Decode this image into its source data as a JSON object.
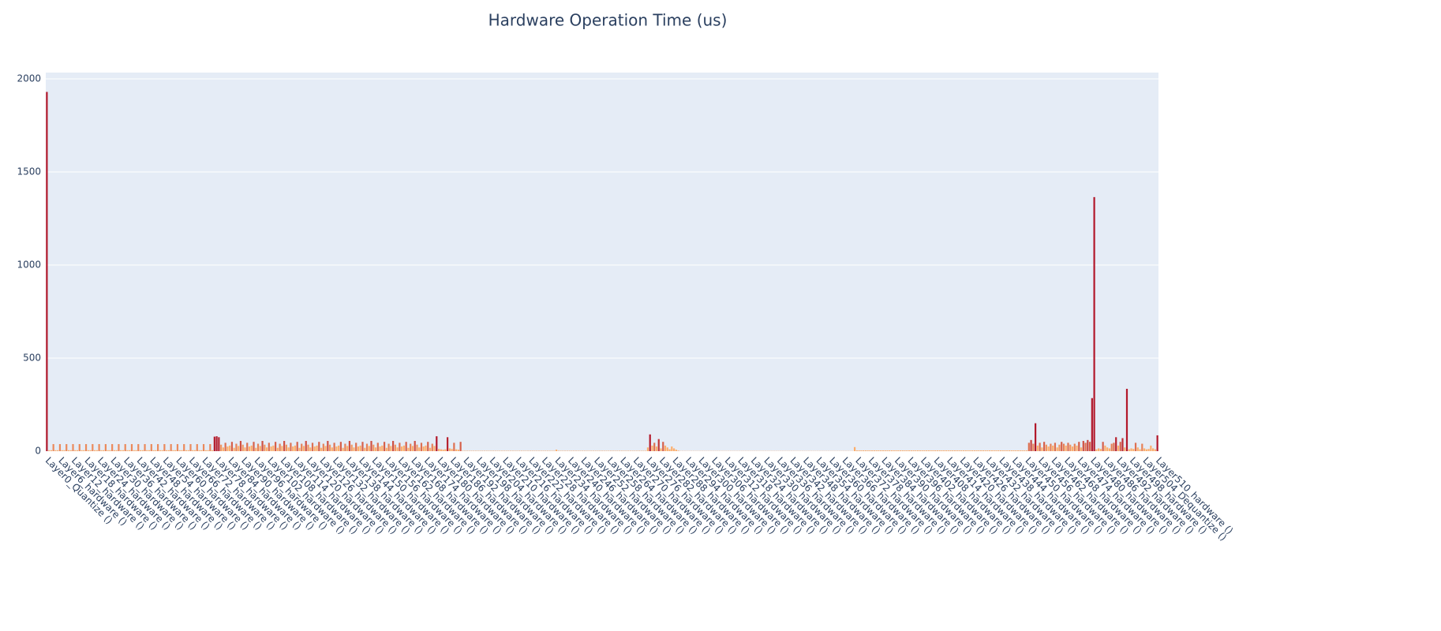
{
  "chart_data": {
    "type": "bar",
    "title": "Hardware Operation Time (us)",
    "categories": [
      "Layer0_Quantize ()",
      null,
      null,
      null,
      null,
      null,
      "Layer6_hardware ()",
      null,
      null,
      null,
      null,
      null,
      "Layer12_hardware ()",
      null,
      null,
      null,
      null,
      null,
      "Layer18_hardware ()",
      null,
      null,
      null,
      null,
      null,
      "Layer24_hardware ()",
      null,
      null,
      null,
      null,
      null,
      "Layer30_hardware ()",
      null,
      null,
      null,
      null,
      null,
      "Layer36_hardware ()",
      null,
      null,
      null,
      null,
      null,
      "Layer42_hardware ()",
      null,
      null,
      null,
      null,
      null,
      "Layer48_hardware ()",
      null,
      null,
      null,
      null,
      null,
      "Layer54_hardware ()",
      null,
      null,
      null,
      null,
      null,
      "Layer60_hardware ()",
      null,
      null,
      null,
      null,
      null,
      "Layer66_hardware ()",
      null,
      null,
      null,
      null,
      null,
      "Layer72_hardware ()",
      null,
      null,
      null,
      null,
      null,
      "Layer78_hardware ()",
      null,
      null,
      null,
      null,
      null,
      "Layer84_hardware ()",
      null,
      null,
      null,
      null,
      null,
      "Layer90_hardware ()",
      null,
      null,
      null,
      null,
      null,
      "Layer96_hardware ()",
      null,
      null,
      null,
      null,
      null,
      "Layer102_hardware ()",
      null,
      null,
      null,
      null,
      null,
      "Layer108_hardware ()",
      null,
      null,
      null,
      null,
      null,
      "Layer114_hardware ()",
      null,
      null,
      null,
      null,
      null,
      "Layer120_hardware ()",
      null,
      null,
      null,
      null,
      null,
      "Layer126_hardware ()",
      null,
      null,
      null,
      null,
      null,
      "Layer132_hardware ()",
      null,
      null,
      null,
      null,
      null,
      "Layer138_hardware ()",
      null,
      null,
      null,
      null,
      null,
      "Layer144_hardware ()",
      null,
      null,
      null,
      null,
      null,
      "Layer150_hardware ()",
      null,
      null,
      null,
      null,
      null,
      "Layer156_hardware ()",
      null,
      null,
      null,
      null,
      null,
      "Layer162_hardware ()",
      null,
      null,
      null,
      null,
      null,
      "Layer168_hardware ()",
      null,
      null,
      null,
      null,
      null,
      "Layer174_hardware ()",
      null,
      null,
      null,
      null,
      null,
      "Layer180_hardware ()",
      null,
      null,
      null,
      null,
      null,
      "Layer186_hardware ()",
      null,
      null,
      null,
      null,
      null,
      "Layer192_hardware ()",
      null,
      null,
      null,
      null,
      null,
      "Layer198_hardware ()",
      null,
      null,
      null,
      null,
      null,
      "Layer204_hardware ()",
      null,
      null,
      null,
      null,
      null,
      "Layer210_hardware ()",
      null,
      null,
      null,
      null,
      null,
      "Layer216_hardware ()",
      null,
      null,
      null,
      null,
      null,
      "Layer222_hardware ()",
      null,
      null,
      null,
      null,
      null,
      "Layer228_hardware ()",
      null,
      null,
      null,
      null,
      null,
      "Layer234_hardware ()",
      null,
      null,
      null,
      null,
      null,
      "Layer240_hardware ()",
      null,
      null,
      null,
      null,
      null,
      "Layer246_hardware ()",
      null,
      null,
      null,
      null,
      null,
      "Layer252_hardware ()",
      null,
      null,
      null,
      null,
      null,
      "Layer258_hardware ()",
      null,
      null,
      null,
      null,
      null,
      "Layer264_hardware ()",
      null,
      null,
      null,
      null,
      null,
      "Layer270_hardware ()",
      null,
      null,
      null,
      null,
      null,
      "Layer276_hardware ()",
      null,
      null,
      null,
      null,
      null,
      "Layer282_hardware ()",
      null,
      null,
      null,
      null,
      null,
      "Layer288_hardware ()",
      null,
      null,
      null,
      null,
      null,
      "Layer294_hardware ()",
      null,
      null,
      null,
      null,
      null,
      "Layer300_hardware ()",
      null,
      null,
      null,
      null,
      null,
      "Layer306_hardware ()",
      null,
      null,
      null,
      null,
      null,
      "Layer312_hardware ()",
      null,
      null,
      null,
      null,
      null,
      "Layer318_hardware ()",
      null,
      null,
      null,
      null,
      null,
      "Layer324_hardware ()",
      null,
      null,
      null,
      null,
      null,
      "Layer330_hardware ()",
      null,
      null,
      null,
      null,
      null,
      "Layer336_hardware ()",
      null,
      null,
      null,
      null,
      null,
      "Layer342_hardware ()",
      null,
      null,
      null,
      null,
      null,
      "Layer348_hardware ()",
      null,
      null,
      null,
      null,
      null,
      "Layer354_hardware ()",
      null,
      null,
      null,
      null,
      null,
      "Layer360_hardware ()",
      null,
      null,
      null,
      null,
      null,
      "Layer366_hardware ()",
      null,
      null,
      null,
      null,
      null,
      "Layer372_hardware ()",
      null,
      null,
      null,
      null,
      null,
      "Layer378_hardware ()",
      null,
      null,
      null,
      null,
      null,
      "Layer384_hardware ()",
      null,
      null,
      null,
      null,
      null,
      "Layer390_hardware ()",
      null,
      null,
      null,
      null,
      null,
      "Layer396_hardware ()",
      null,
      null,
      null,
      null,
      null,
      "Layer402_hardware ()",
      null,
      null,
      null,
      null,
      null,
      "Layer408_hardware ()",
      null,
      null,
      null,
      null,
      null,
      "Layer414_hardware ()",
      null,
      null,
      null,
      null,
      null,
      "Layer420_hardware ()",
      null,
      null,
      null,
      null,
      null,
      "Layer426_hardware ()",
      null,
      null,
      null,
      null,
      null,
      "Layer432_hardware ()",
      null,
      null,
      null,
      null,
      null,
      "Layer438_hardware ()",
      null,
      null,
      null,
      null,
      null,
      "Layer444_hardware ()",
      null,
      null,
      null,
      null,
      null,
      "Layer450_hardware ()",
      null,
      null,
      null,
      null,
      null,
      "Layer456_hardware ()",
      null,
      null,
      null,
      null,
      null,
      "Layer462_hardware ()",
      null,
      null,
      null,
      null,
      null,
      "Layer468_hardware ()",
      null,
      null,
      null,
      null,
      null,
      "Layer474_hardware ()",
      null,
      null,
      null,
      null,
      null,
      "Layer480_hardware ()",
      null,
      null,
      null,
      null,
      null,
      "Layer486_hardware ()",
      null,
      null,
      null,
      null,
      null,
      "Layer492_hardware ()",
      null,
      null,
      null,
      null,
      null,
      "Layer498_hardware ()",
      null,
      null,
      null,
      null,
      null,
      "Layer504_Dequantize ()",
      null,
      null,
      null,
      null,
      null,
      "Layer510_hardware ()"
    ],
    "values": [
      1930,
      5,
      5,
      38,
      5,
      5,
      38,
      5,
      5,
      38,
      5,
      5,
      38,
      5,
      5,
      38,
      5,
      5,
      38,
      5,
      5,
      38,
      5,
      5,
      38,
      5,
      5,
      38,
      5,
      5,
      38,
      5,
      5,
      38,
      5,
      5,
      38,
      5,
      5,
      38,
      5,
      5,
      38,
      5,
      5,
      38,
      5,
      5,
      38,
      5,
      5,
      38,
      5,
      5,
      38,
      5,
      5,
      38,
      5,
      5,
      38,
      5,
      5,
      38,
      5,
      5,
      38,
      5,
      5,
      38,
      5,
      5,
      38,
      5,
      5,
      38,
      5,
      78,
      80,
      75,
      35,
      20,
      45,
      25,
      30,
      50,
      18,
      40,
      28,
      55,
      35,
      20,
      45,
      25,
      30,
      50,
      18,
      40,
      28,
      55,
      35,
      20,
      45,
      25,
      30,
      50,
      18,
      40,
      28,
      55,
      35,
      20,
      45,
      25,
      30,
      50,
      18,
      40,
      28,
      55,
      35,
      20,
      45,
      25,
      30,
      50,
      18,
      40,
      28,
      55,
      35,
      20,
      45,
      25,
      30,
      50,
      18,
      40,
      28,
      55,
      35,
      20,
      45,
      25,
      30,
      50,
      18,
      40,
      28,
      55,
      35,
      20,
      45,
      25,
      30,
      50,
      18,
      40,
      28,
      55,
      35,
      20,
      45,
      25,
      30,
      50,
      18,
      40,
      28,
      55,
      35,
      20,
      45,
      25,
      30,
      50,
      18,
      40,
      28,
      80,
      12,
      10,
      8,
      10,
      75,
      15,
      12,
      45,
      10,
      8,
      50,
      2,
      2,
      2,
      2,
      2,
      2,
      2,
      2,
      2,
      2,
      2,
      2,
      2,
      2,
      2,
      2,
      2,
      2,
      2,
      2,
      2,
      2,
      2,
      2,
      2,
      2,
      2,
      2,
      2,
      2,
      2,
      2,
      2,
      2,
      2,
      2,
      2,
      2,
      2,
      2,
      2,
      2,
      2,
      8,
      2,
      2,
      2,
      2,
      2,
      2,
      2,
      2,
      2,
      2,
      2,
      2,
      2,
      2,
      2,
      2,
      2,
      2,
      2,
      2,
      2,
      2,
      2,
      2,
      2,
      2,
      2,
      2,
      2,
      2,
      2,
      2,
      2,
      2,
      2,
      2,
      2,
      2,
      2,
      2,
      2,
      20,
      90,
      30,
      45,
      25,
      65,
      15,
      50,
      30,
      20,
      10,
      25,
      15,
      8,
      3,
      1,
      1,
      1,
      1,
      1,
      1,
      1,
      1,
      1,
      1,
      1,
      1,
      1,
      1,
      1,
      1,
      1,
      1,
      1,
      1,
      1,
      1,
      1,
      1,
      1,
      1,
      1,
      1,
      1,
      1,
      1,
      1,
      1,
      1,
      1,
      1,
      1,
      1,
      1,
      1,
      1,
      1,
      1,
      1,
      1,
      1,
      1,
      1,
      1,
      1,
      1,
      1,
      1,
      1,
      1,
      1,
      1,
      1,
      1,
      1,
      1,
      1,
      1,
      1,
      1,
      1,
      1,
      1,
      1,
      1,
      1,
      1,
      1,
      1,
      1,
      1,
      1,
      1,
      1,
      1,
      22,
      4,
      4,
      4,
      4,
      4,
      4,
      4,
      4,
      4,
      4,
      4,
      4,
      4,
      4,
      4,
      4,
      4,
      4,
      4,
      4,
      4,
      4,
      4,
      4,
      4,
      4,
      4,
      4,
      4,
      4,
      4,
      4,
      4,
      4,
      4,
      4,
      4,
      4,
      4,
      4,
      4,
      4,
      4,
      4,
      4,
      4,
      4,
      4,
      4,
      4,
      4,
      4,
      4,
      4,
      4,
      4,
      4,
      4,
      4,
      4,
      4,
      4,
      4,
      4,
      4,
      4,
      4,
      4,
      4,
      4,
      4,
      4,
      4,
      4,
      4,
      4,
      4,
      4,
      4,
      45,
      60,
      40,
      150,
      30,
      45,
      20,
      50,
      35,
      25,
      40,
      30,
      45,
      20,
      35,
      50,
      40,
      30,
      45,
      35,
      25,
      40,
      30,
      50,
      20,
      55,
      45,
      60,
      50,
      285,
      1365,
      10,
      15,
      12,
      50,
      30,
      20,
      15,
      40,
      45,
      75,
      30,
      50,
      70,
      20,
      335,
      10,
      15,
      12,
      45,
      20,
      10,
      40,
      15,
      10,
      12,
      30,
      15,
      10,
      85
    ],
    "colorscale": [
      "#fdae6b",
      "#b2182b"
    ],
    "ylim": [
      0,
      2034
    ],
    "yticks": [
      0,
      500,
      1000,
      1500,
      2000
    ],
    "grid": true
  }
}
